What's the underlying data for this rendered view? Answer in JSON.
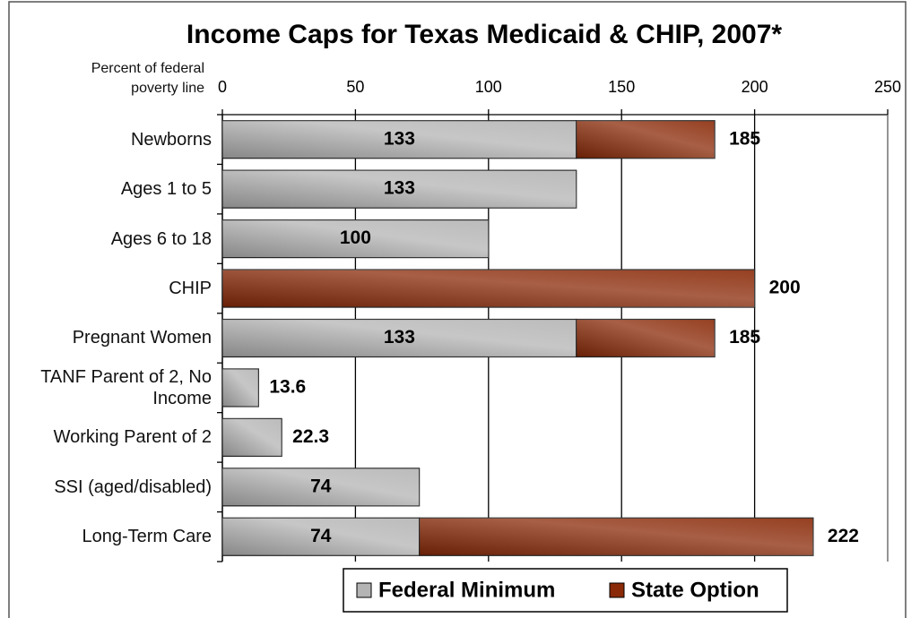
{
  "chart_data": {
    "type": "stacked_barh",
    "title": "Income Caps for Texas Medicaid & CHIP, 2007*",
    "axis_label": "Percent of federal poverty line",
    "categories": [
      "Newborns",
      "Ages 1 to 5",
      "Ages 6 to 18",
      "CHIP",
      "Pregnant Women",
      "TANF Parent of 2, No Income",
      "Working Parent of 2",
      "SSI (aged/disabled)",
      "Long-Term Care"
    ],
    "series": [
      {
        "name": "Federal Minimum",
        "color": "#b4b4b4",
        "values": [
          133,
          133,
          100,
          null,
          133,
          13.6,
          22.3,
          74,
          74
        ]
      },
      {
        "name": "State Option",
        "color": "#8a2a08",
        "values": [
          52,
          null,
          null,
          200,
          52,
          null,
          null,
          null,
          148
        ]
      }
    ],
    "totals": [
      185,
      null,
      null,
      200,
      185,
      null,
      null,
      null,
      222
    ],
    "xlim": [
      0,
      250
    ],
    "xticks": [
      0,
      50,
      100,
      150,
      200,
      250
    ],
    "grid": true,
    "legend": "bottom"
  }
}
